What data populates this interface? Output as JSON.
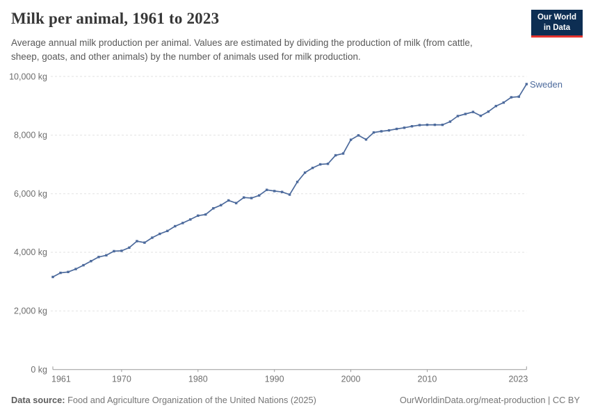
{
  "header": {
    "title": "Milk per animal, 1961 to 2023",
    "subtitle": "Average annual milk production per animal. Values are estimated by dividing the production of milk (from cattle, sheep, goats, and other animals) by the number of animals used for milk production."
  },
  "logo": {
    "line1": "Our World",
    "line2": "in Data"
  },
  "entity_label": "Sweden",
  "footer": {
    "source_label": "Data source:",
    "source_text": " Food and Agriculture Organization of the United Nations (2025)",
    "credit": "OurWorldinData.org/meat-production | CC BY"
  },
  "colors": {
    "line": "#4c6a9c",
    "grid": "#e2e2e2",
    "axis": "#9a9a9a",
    "logo_navy": "#0d2e53",
    "logo_red": "#e5332e"
  },
  "chart_data": {
    "type": "line",
    "title": "Milk per animal, 1961 to 2023",
    "xlabel": "",
    "ylabel": "kg",
    "xlim": [
      1961,
      2023
    ],
    "ylim": [
      0,
      10000
    ],
    "grid": "horizontal-dashed",
    "legend": "line-end-label",
    "x_ticks": [
      1961,
      1970,
      1980,
      1990,
      2000,
      2010,
      2023
    ],
    "y_ticks": [
      0,
      2000,
      4000,
      6000,
      8000,
      10000
    ],
    "y_tick_labels": [
      "0 kg",
      "2,000 kg",
      "4,000 kg",
      "6,000 kg",
      "8,000 kg",
      "10,000 kg"
    ],
    "series": [
      {
        "name": "Sweden",
        "x": [
          1961,
          1962,
          1963,
          1964,
          1965,
          1966,
          1967,
          1968,
          1969,
          1970,
          1971,
          1972,
          1973,
          1974,
          1975,
          1976,
          1977,
          1978,
          1979,
          1980,
          1981,
          1982,
          1983,
          1984,
          1985,
          1986,
          1987,
          1988,
          1989,
          1990,
          1991,
          1992,
          1993,
          1994,
          1995,
          1996,
          1997,
          1998,
          1999,
          2000,
          2001,
          2002,
          2003,
          2004,
          2005,
          2006,
          2007,
          2008,
          2009,
          2010,
          2011,
          2012,
          2013,
          2014,
          2015,
          2016,
          2017,
          2018,
          2019,
          2020,
          2021,
          2022,
          2023
        ],
        "values": [
          3160,
          3300,
          3330,
          3430,
          3560,
          3700,
          3840,
          3900,
          4040,
          4050,
          4160,
          4380,
          4330,
          4500,
          4630,
          4730,
          4890,
          5000,
          5120,
          5250,
          5290,
          5500,
          5610,
          5770,
          5680,
          5870,
          5850,
          5940,
          6130,
          6090,
          6060,
          5970,
          6400,
          6720,
          6880,
          7000,
          7020,
          7310,
          7370,
          7840,
          7990,
          7850,
          8090,
          8130,
          8160,
          8210,
          8250,
          8300,
          8340,
          8350,
          8350,
          8350,
          8460,
          8650,
          8720,
          8790,
          8660,
          8800,
          8990,
          9110,
          9290,
          9310,
          9740
        ]
      }
    ]
  }
}
